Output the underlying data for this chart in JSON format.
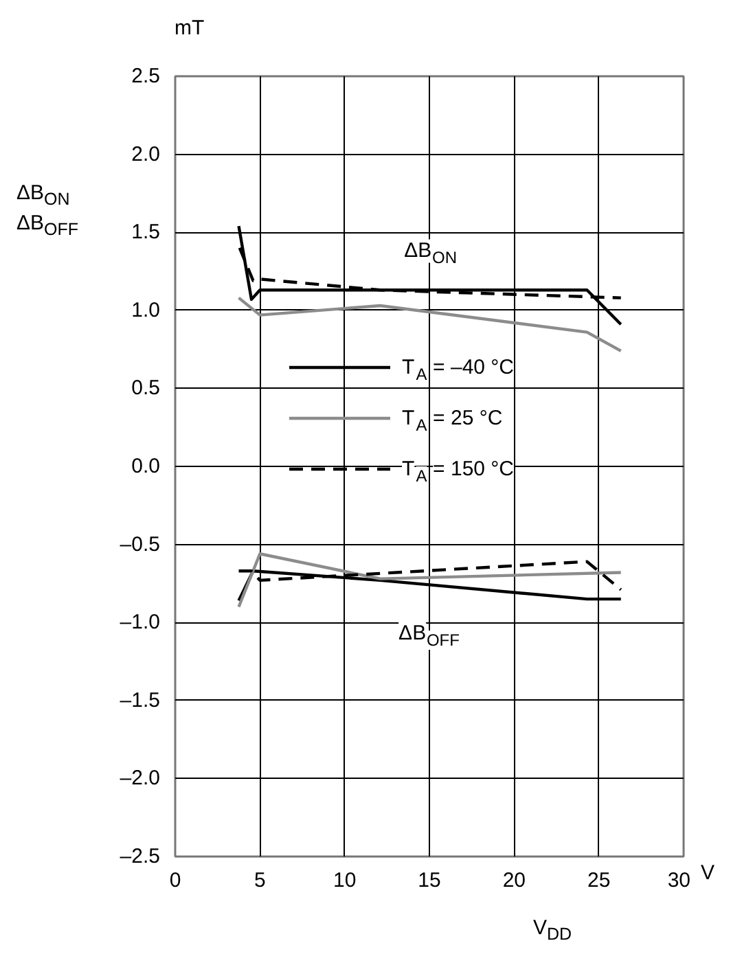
{
  "chart_data": {
    "type": "line",
    "xlabel": "V$_{DD}$",
    "ylabel": "ΔB$_{ON}$\nΔB$_{OFF}$",
    "xlim": [
      0,
      30
    ],
    "ylim": [
      -2.5,
      2.5
    ],
    "xticks": [
      0,
      5,
      10,
      15,
      20,
      25,
      30
    ],
    "yticks": [
      {
        "value": 2.5,
        "label": "2.5"
      },
      {
        "value": 2.0,
        "label": "2.0"
      },
      {
        "value": 1.5,
        "label": "1.5"
      },
      {
        "value": 1.0,
        "label": "1.0"
      },
      {
        "value": 0.5,
        "label": "0.5"
      },
      {
        "value": 0,
        "label": "0.0"
      },
      {
        "value": -0.5,
        "label": "–0.5"
      },
      {
        "value": -1.0,
        "label": "–1.0"
      },
      {
        "value": -1.5,
        "label": "–1.5"
      },
      {
        "value": -2.0,
        "label": "–2.0"
      },
      {
        "value": -2.5,
        "label": "–2.5"
      }
    ],
    "grid": true,
    "legend": "center",
    "marker": "none",
    "series": [
      {
        "name": "T$_{A}$ = –40 °C",
        "color": "#000000",
        "line_style": "solid",
        "x": [
          3.75,
          4.5,
          5.0,
          24.3,
          26.3
        ],
        "values": [
          1.54,
          1.07,
          1.13,
          1.13,
          0.91
        ]
      },
      {
        "name": "T$_{A}$ = 25 °C",
        "color": "#8c8c8c",
        "line_style": "solid",
        "x": [
          3.75,
          5.0,
          12.1,
          24.3,
          26.3
        ],
        "values": [
          1.08,
          0.97,
          1.03,
          0.86,
          0.74
        ]
      },
      {
        "name": "T$_{A}$ = 150 °C",
        "color": "#000000",
        "line_style": "dashed",
        "x": [
          3.8,
          4.6,
          5.0,
          12.1,
          26.3
        ],
        "values": [
          1.4,
          1.19,
          1.2,
          1.13,
          1.08
        ]
      },
      {
        "color": "#000000",
        "line_style": "solid",
        "x": [
          3.75,
          4.6,
          12.1,
          24.3,
          26.3
        ],
        "values": [
          -0.86,
          -0.67,
          -0.73,
          -0.85,
          -0.85
        ]
      },
      {
        "color": "#8c8c8c",
        "line_style": "solid",
        "x": [
          3.75,
          5.0,
          12.1,
          26.3
        ],
        "values": [
          -0.9,
          -0.56,
          -0.72,
          -0.68
        ]
      },
      {
        "color": "#000000",
        "line_style": "dashed",
        "x": [
          3.75,
          4.5,
          5.0,
          24.3,
          26.3
        ],
        "values": [
          -0.67,
          -0.67,
          -0.73,
          -0.61,
          -0.79
        ]
      }
    ],
    "annotations": [
      "ΔB$_{ON}$",
      "ΔB$_{OFF}$",
      "mT",
      "V"
    ]
  }
}
